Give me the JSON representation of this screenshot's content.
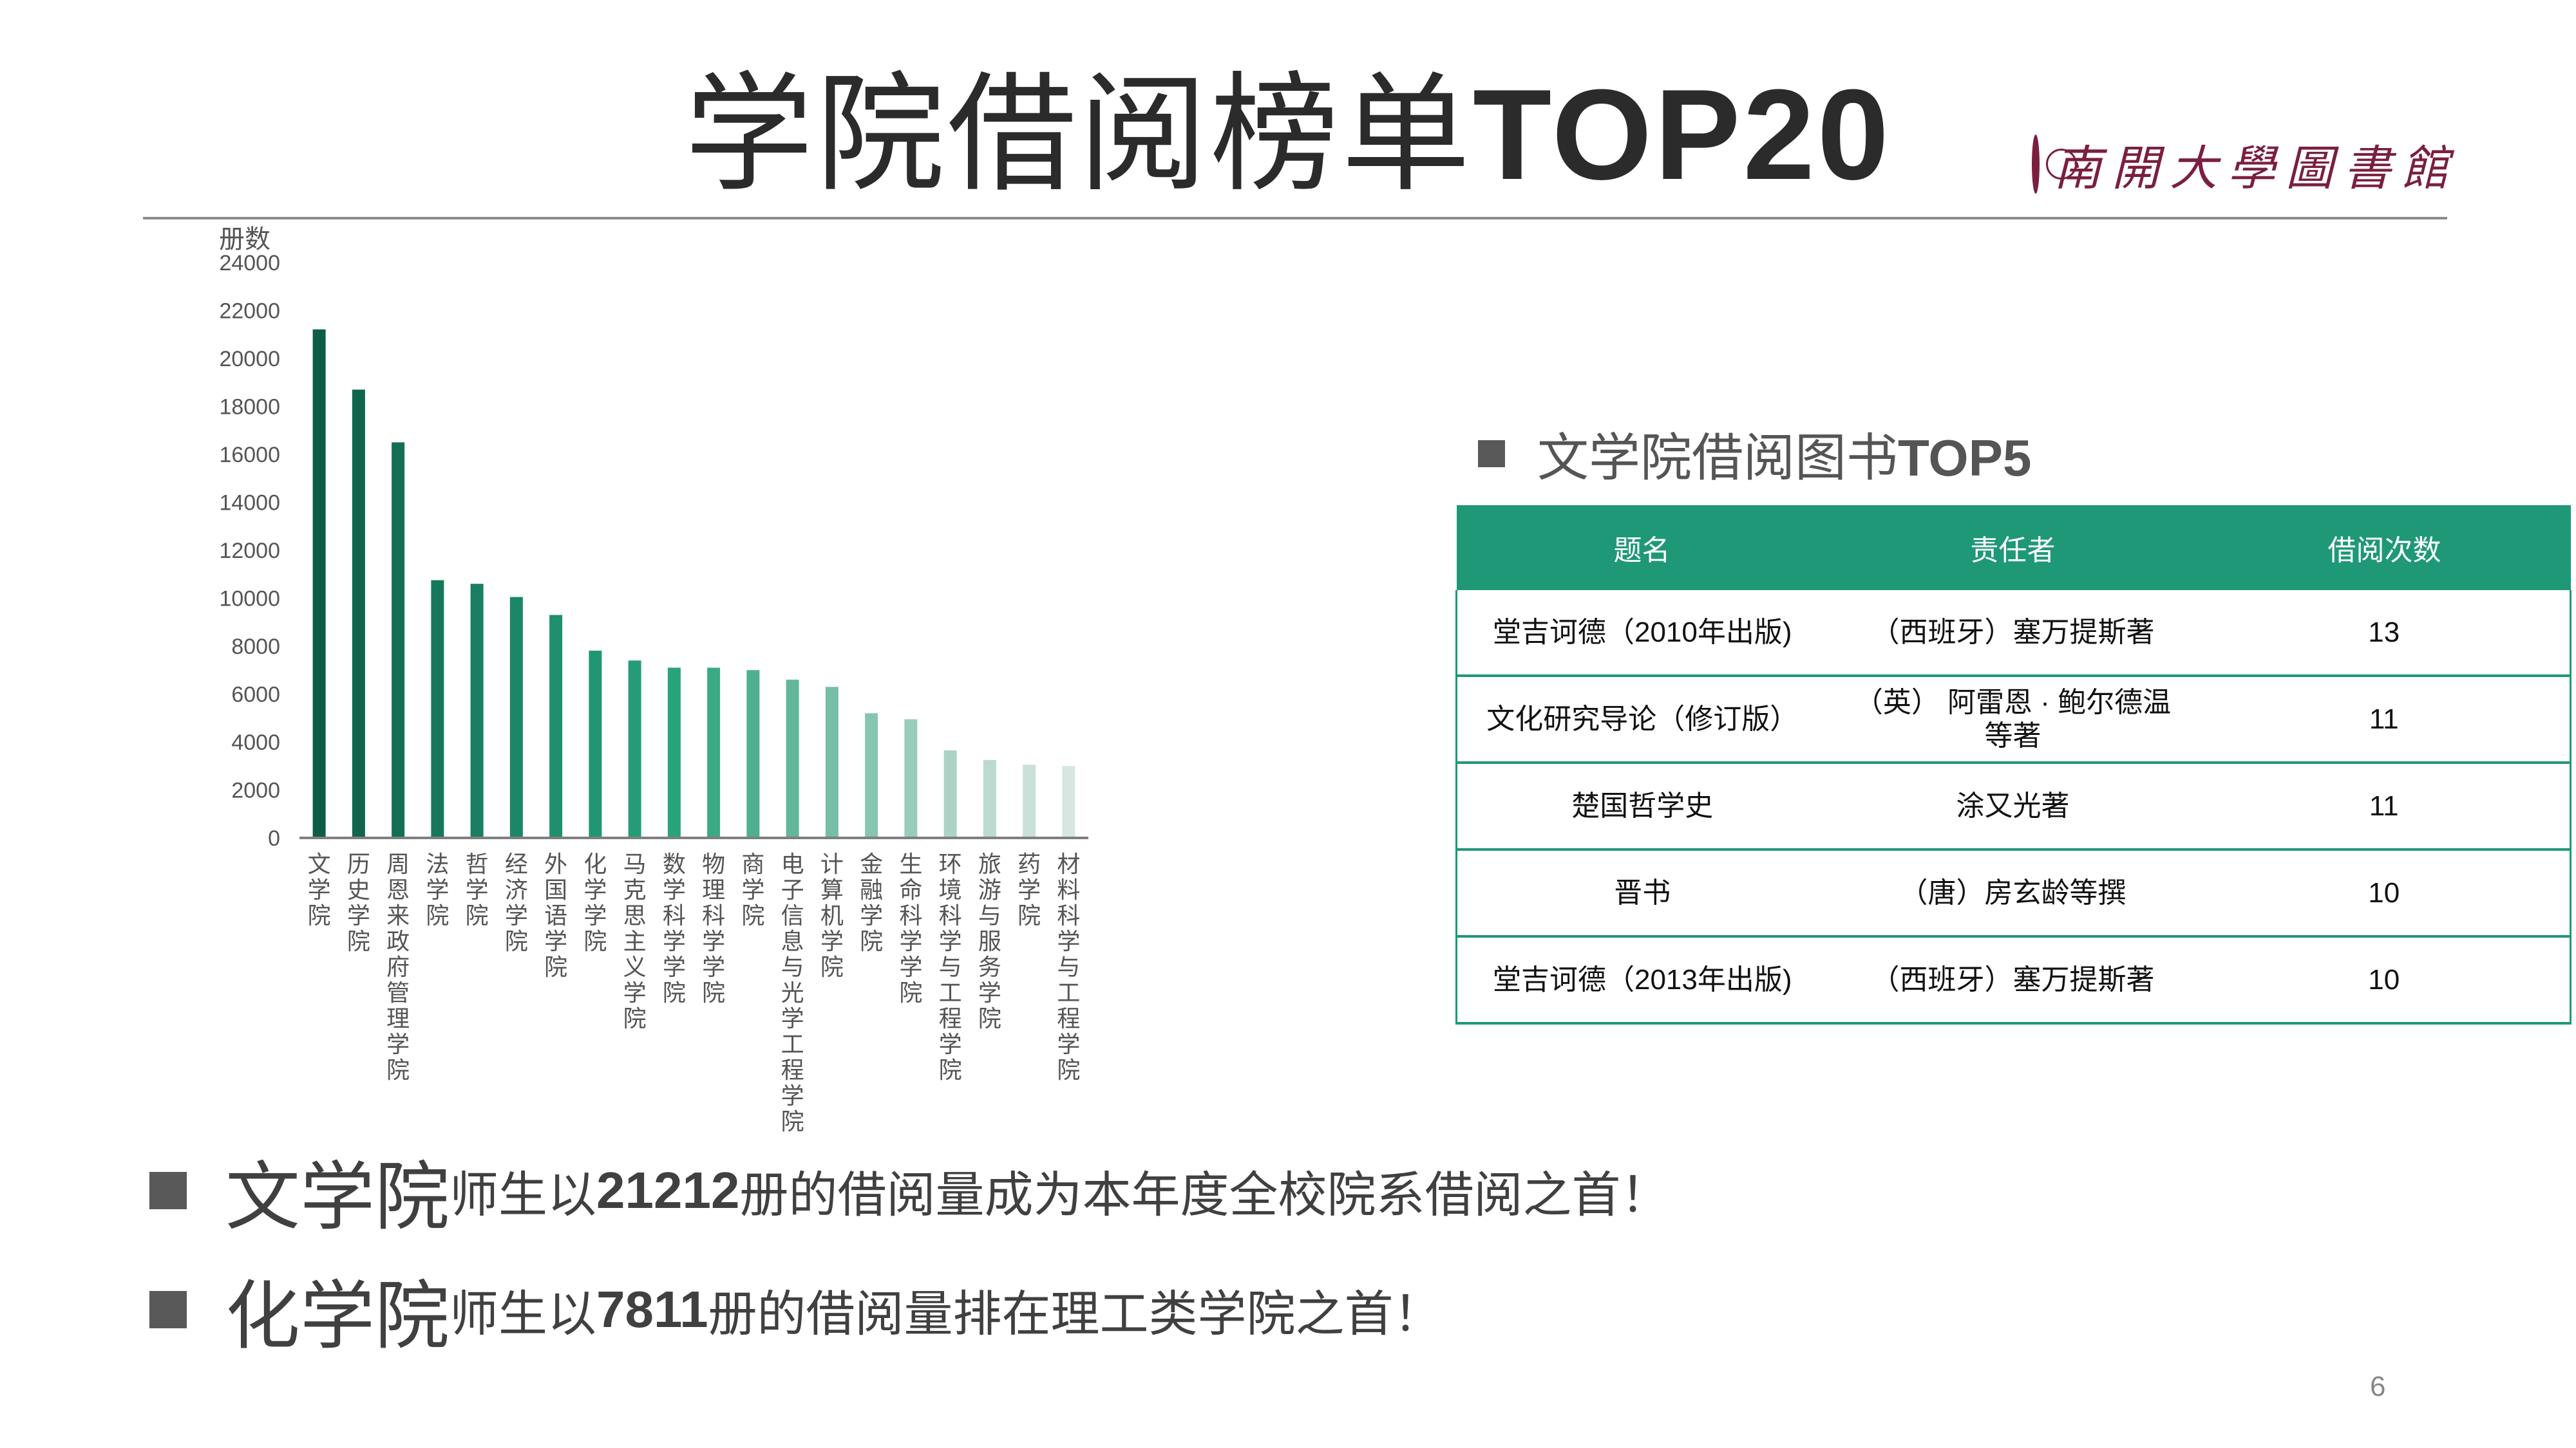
{
  "title": {
    "cn": "学院借阅榜单",
    "latin": "TOP20"
  },
  "logo": {
    "text": "南開大學圖書館"
  },
  "chart_data": {
    "type": "bar",
    "ylabel": "册数",
    "ylim": [
      0,
      24000
    ],
    "yticks": [
      0,
      2000,
      4000,
      6000,
      8000,
      10000,
      12000,
      14000,
      16000,
      18000,
      20000,
      22000,
      24000
    ],
    "grid": false,
    "categories": [
      "文学院",
      "历史学院",
      "周恩来政府管理学院",
      "法学院",
      "哲学院",
      "经济学院",
      "外国语学院",
      "化学学院",
      "马克思主义学院",
      "数学科学学院",
      "物理科学学院",
      "商学院",
      "电子信息与光学工程学院",
      "计算机学院",
      "金融学院",
      "生命科学学院",
      "环境科学与工程学院",
      "旅游与服务学院",
      "药学院",
      "材料科学与工程学院"
    ],
    "values": [
      21212,
      18700,
      16500,
      10750,
      10600,
      10050,
      9300,
      7811,
      7400,
      7100,
      7100,
      7000,
      6600,
      6300,
      5200,
      4950,
      3650,
      3250,
      3050,
      3000
    ],
    "colors": [
      "#0d5c47",
      "#11654e",
      "#146e55",
      "#17775c",
      "#1a7f62",
      "#1c8768",
      "#1f8f6d",
      "#219672",
      "#249d77",
      "#28a37b",
      "#3aaa85",
      "#4eb08f",
      "#62b79a",
      "#76bea5",
      "#88c5b0",
      "#9accba",
      "#acd3c5",
      "#bcdacf",
      "#cae0d8",
      "#d5e7e0"
    ]
  },
  "top5": {
    "title_cn": "文学院借阅图书",
    "title_latin": "TOP5",
    "headers": [
      "题名",
      "责任者",
      "借阅次数"
    ],
    "rows": [
      [
        "堂吉诃德（2010年出版)",
        "（西班牙）塞万提斯著",
        "13"
      ],
      [
        "文化研究导论（修订版）",
        "（英） 阿雷恩 · 鲍尔德温 等著",
        "11"
      ],
      [
        "楚国哲学史",
        "涂又光著",
        "11"
      ],
      [
        "晋书",
        "（唐）房玄龄等撰",
        "10"
      ],
      [
        "堂吉诃德（2013年出版)",
        "（西班牙）塞万提斯著",
        "10"
      ]
    ]
  },
  "notes": [
    {
      "lead": "文学院",
      "pre": "师生以",
      "num": "21212",
      "post": "册的借阅量成为本年度全校院系借阅之首！"
    },
    {
      "lead": "化学院",
      "pre": "师生以",
      "num": "7811",
      "post": "册的借阅量排在理工类学院之首！"
    }
  ],
  "page_number": "6"
}
